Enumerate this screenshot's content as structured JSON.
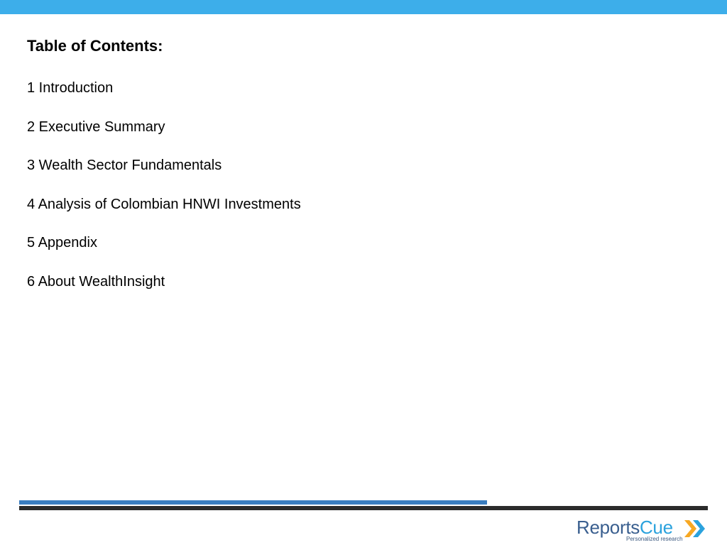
{
  "colors": {
    "top_bar": "#3daeea",
    "rule_blue": "#3a7dbf",
    "rule_dark": "#2b2b2b",
    "logo_reports": "#3a5f8f",
    "logo_cue": "#2ba2dd",
    "chevron_orange": "#f7a823",
    "chevron_blue": "#2ba2dd"
  },
  "toc": {
    "title": "Table of Contents:",
    "items": [
      "1 Introduction",
      "2 Executive Summary",
      "3 Wealth Sector Fundamentals",
      "4 Analysis of Colombian HNWI Investments",
      "5 Appendix",
      "6 About WealthInsight"
    ]
  },
  "logo": {
    "reports": "Reports",
    "cue": "Cue",
    "tagline": "Personalized research",
    "icon": "double-chevron-right-icon"
  }
}
